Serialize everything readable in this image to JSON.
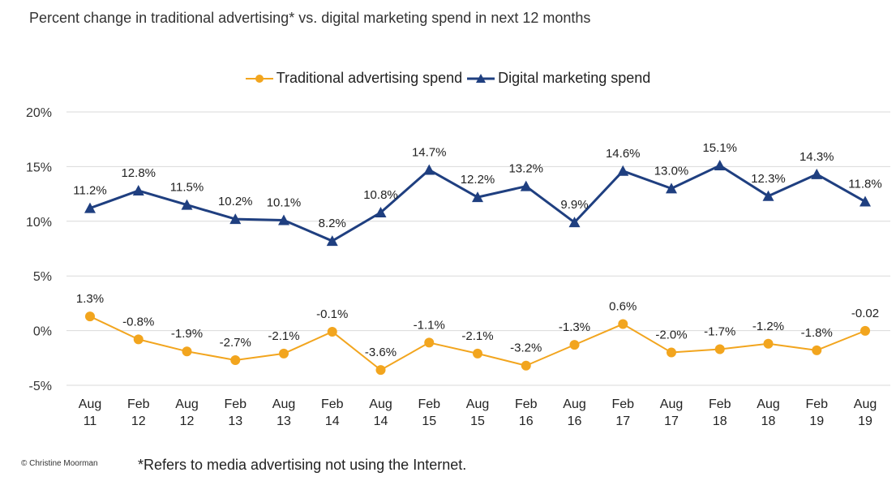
{
  "title": "Percent change in traditional advertising* vs. digital marketing spend in next 12 months",
  "footnote": "*Refers to media advertising not using the Internet.",
  "copyright": "© Christine Moorman",
  "colors": {
    "traditional": "#F2A51E",
    "digital": "#1F3F80",
    "grid": "#d9d9d9"
  },
  "chart_data": {
    "type": "line",
    "categories": [
      "Aug 11",
      "Feb 12",
      "Aug 12",
      "Feb 13",
      "Aug 13",
      "Feb 14",
      "Aug 14",
      "Feb 15",
      "Aug 15",
      "Feb 16",
      "Aug 16",
      "Feb 17",
      "Aug 17",
      "Feb 18",
      "Aug 18",
      "Feb 19",
      "Aug 19"
    ],
    "ylim": [
      -5,
      20
    ],
    "yticks": [
      "-5%",
      "0%",
      "5%",
      "10%",
      "15%",
      "20%"
    ],
    "legend_position": "top-center",
    "grid": true,
    "series": [
      {
        "name": "Traditional advertising spend",
        "marker": "circle",
        "values": [
          1.3,
          -0.8,
          -1.9,
          -2.7,
          -2.1,
          -0.1,
          -3.6,
          -1.1,
          -2.1,
          -3.2,
          -1.3,
          0.6,
          -2.0,
          -1.7,
          -1.2,
          -1.8,
          -0.02
        ],
        "labels": [
          "1.3%",
          "-0.8%",
          "-1.9%",
          "-2.7%",
          "-2.1%",
          "-0.1%",
          "-3.6%",
          "-1.1%",
          "-2.1%",
          "-3.2%",
          "-1.3%",
          "0.6%",
          "-2.0%",
          "-1.7%",
          "-1.2%",
          "-1.8%",
          "-0.02"
        ]
      },
      {
        "name": "Digital marketing spend",
        "marker": "triangle",
        "values": [
          11.2,
          12.8,
          11.5,
          10.2,
          10.1,
          8.2,
          10.8,
          14.7,
          12.2,
          13.2,
          9.9,
          14.6,
          13.0,
          15.1,
          12.3,
          14.3,
          11.8
        ],
        "labels": [
          "11.2%",
          "12.8%",
          "11.5%",
          "10.2%",
          "10.1%",
          "8.2%",
          "10.8%",
          "14.7%",
          "12.2%",
          "13.2%",
          "9.9%",
          "14.6%",
          "13.0%",
          "15.1%",
          "12.3%",
          "14.3%",
          "11.8%"
        ]
      }
    ]
  }
}
